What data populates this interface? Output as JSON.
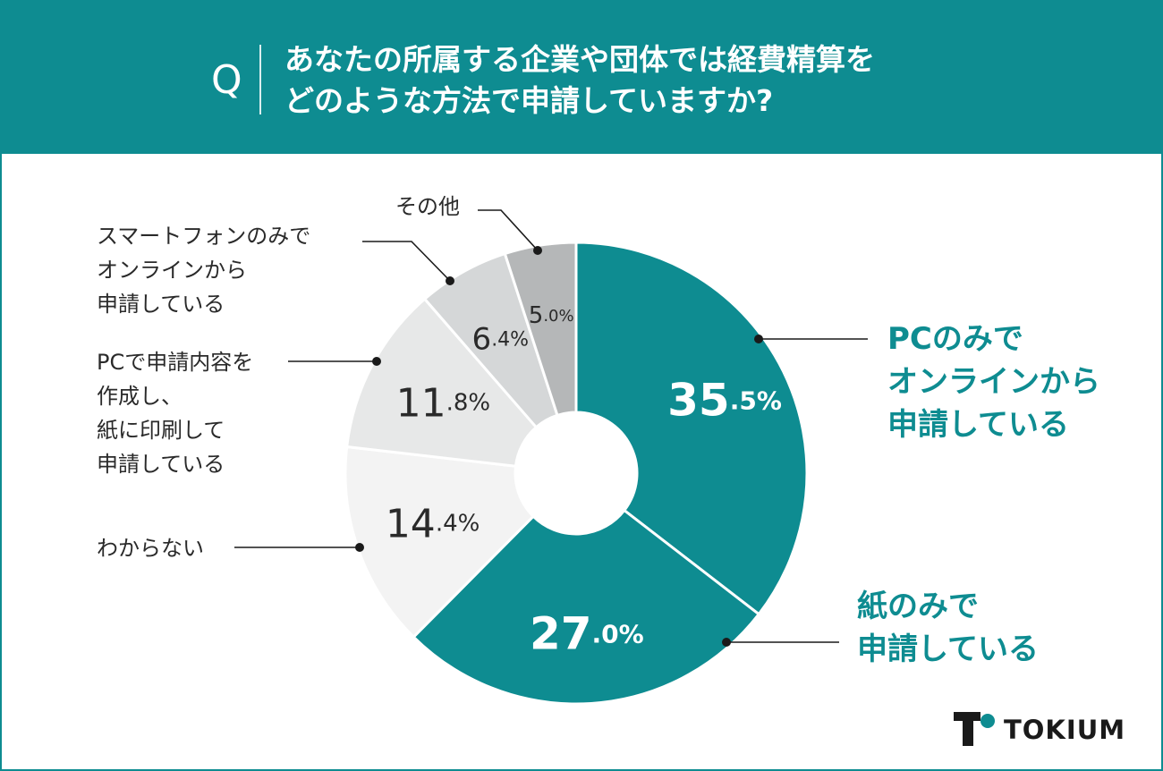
{
  "header": {
    "q_mark": "Q",
    "question_lines": [
      "あなたの所属する企業や団体では経費精算を",
      "どのような方法で申請していますか?"
    ]
  },
  "chart_data": {
    "type": "pie",
    "donut": true,
    "slices": [
      {
        "label_lines": [
          "PCのみで",
          "オンラインから",
          "申請している"
        ],
        "value": 35.5,
        "int": "35",
        "dec": ".5%",
        "color": "#0e8c91",
        "text_color": "#ffffff"
      },
      {
        "label_lines": [
          "紙のみで",
          "申請している"
        ],
        "value": 27.0,
        "int": "27",
        "dec": ".0%",
        "color": "#0e8c91",
        "text_color": "#ffffff"
      },
      {
        "label_lines": [
          "わからない"
        ],
        "value": 14.4,
        "int": "14",
        "dec": ".4%",
        "color": "#f3f3f3",
        "text_color": "#2a2a2a"
      },
      {
        "label_lines": [
          "PCで申請内容を",
          "作成し、",
          "紙に印刷して",
          "申請している"
        ],
        "value": 11.8,
        "int": "11",
        "dec": ".8%",
        "color": "#e7e8e8",
        "text_color": "#2a2a2a"
      },
      {
        "label_lines": [
          "スマートフォンのみで",
          "オンラインから",
          "申請している"
        ],
        "value": 6.4,
        "int": "6",
        "dec": ".4%",
        "color": "#d5d7d8",
        "text_color": "#2a2a2a"
      },
      {
        "label_lines": [
          "その他"
        ],
        "value": 5.0,
        "int": "5",
        "dec": ".0%",
        "color": "#b5b7b8",
        "text_color": "#2a2a2a"
      }
    ]
  },
  "brand": {
    "name": "TOKIUM",
    "accent": "#0e8c91"
  }
}
